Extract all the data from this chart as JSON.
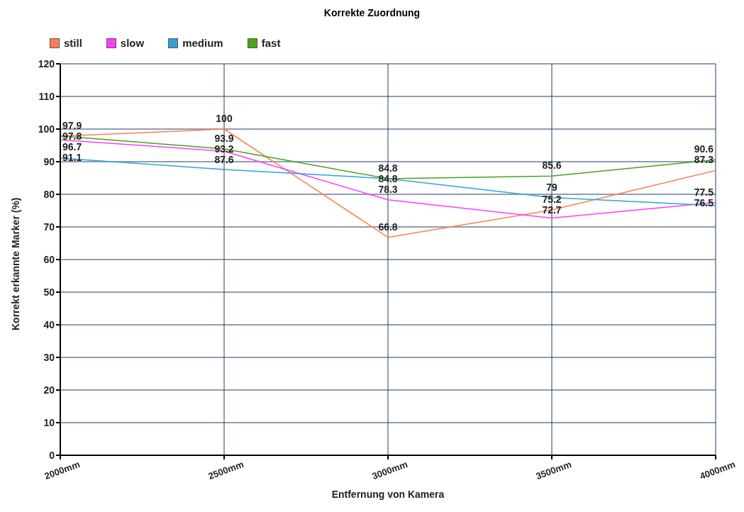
{
  "chart_data": {
    "type": "line",
    "title": "Korrekte Zuordnung",
    "xlabel": "Entfernung von Kamera",
    "ylabel": "Korrekt erkannte Marker (%)",
    "categories": [
      "2000mm",
      "2500mm",
      "3000mm",
      "3500mm",
      "4000mm"
    ],
    "series": [
      {
        "name": "still",
        "color": "#ff7f50",
        "values": [
          97.8,
          100,
          66.8,
          75.2,
          87.3
        ]
      },
      {
        "name": "slow",
        "color": "#ff3cff",
        "values": [
          96.7,
          93.2,
          78.3,
          72.7,
          77.5
        ]
      },
      {
        "name": "medium",
        "color": "#2fa4d8",
        "values": [
          91.1,
          87.6,
          84.8,
          79,
          76.5
        ]
      },
      {
        "name": "fast",
        "color": "#4aa11c",
        "values": [
          97.9,
          93.9,
          84.8,
          85.6,
          90.6
        ]
      }
    ],
    "ylim": [
      0,
      120
    ],
    "yticks": [
      0,
      10,
      20,
      30,
      40,
      50,
      60,
      70,
      80,
      90,
      100,
      110,
      120
    ],
    "grid": true,
    "legend": "top left",
    "data_labels": true,
    "marker": "none"
  }
}
